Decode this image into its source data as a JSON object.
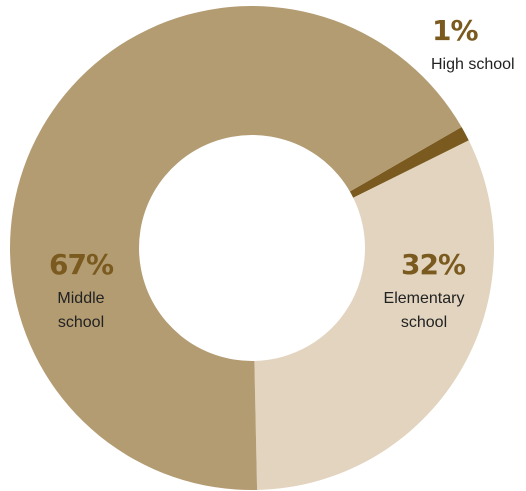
{
  "chart_data": {
    "type": "pie",
    "variant": "donut",
    "slices": [
      {
        "value": 1,
        "percent_label": "1%",
        "label_lines": [
          "High school"
        ],
        "color": "#7a5a1e"
      },
      {
        "value": 32,
        "percent_label": "32%",
        "label_lines": [
          "Elementary",
          "school"
        ],
        "color": "#e2d4bf"
      },
      {
        "value": 67,
        "percent_label": "67%",
        "label_lines": [
          "Middle",
          "school"
        ],
        "color": "#b39c72"
      }
    ],
    "label_color": "#7a5a1e",
    "text_color": "#222222"
  }
}
